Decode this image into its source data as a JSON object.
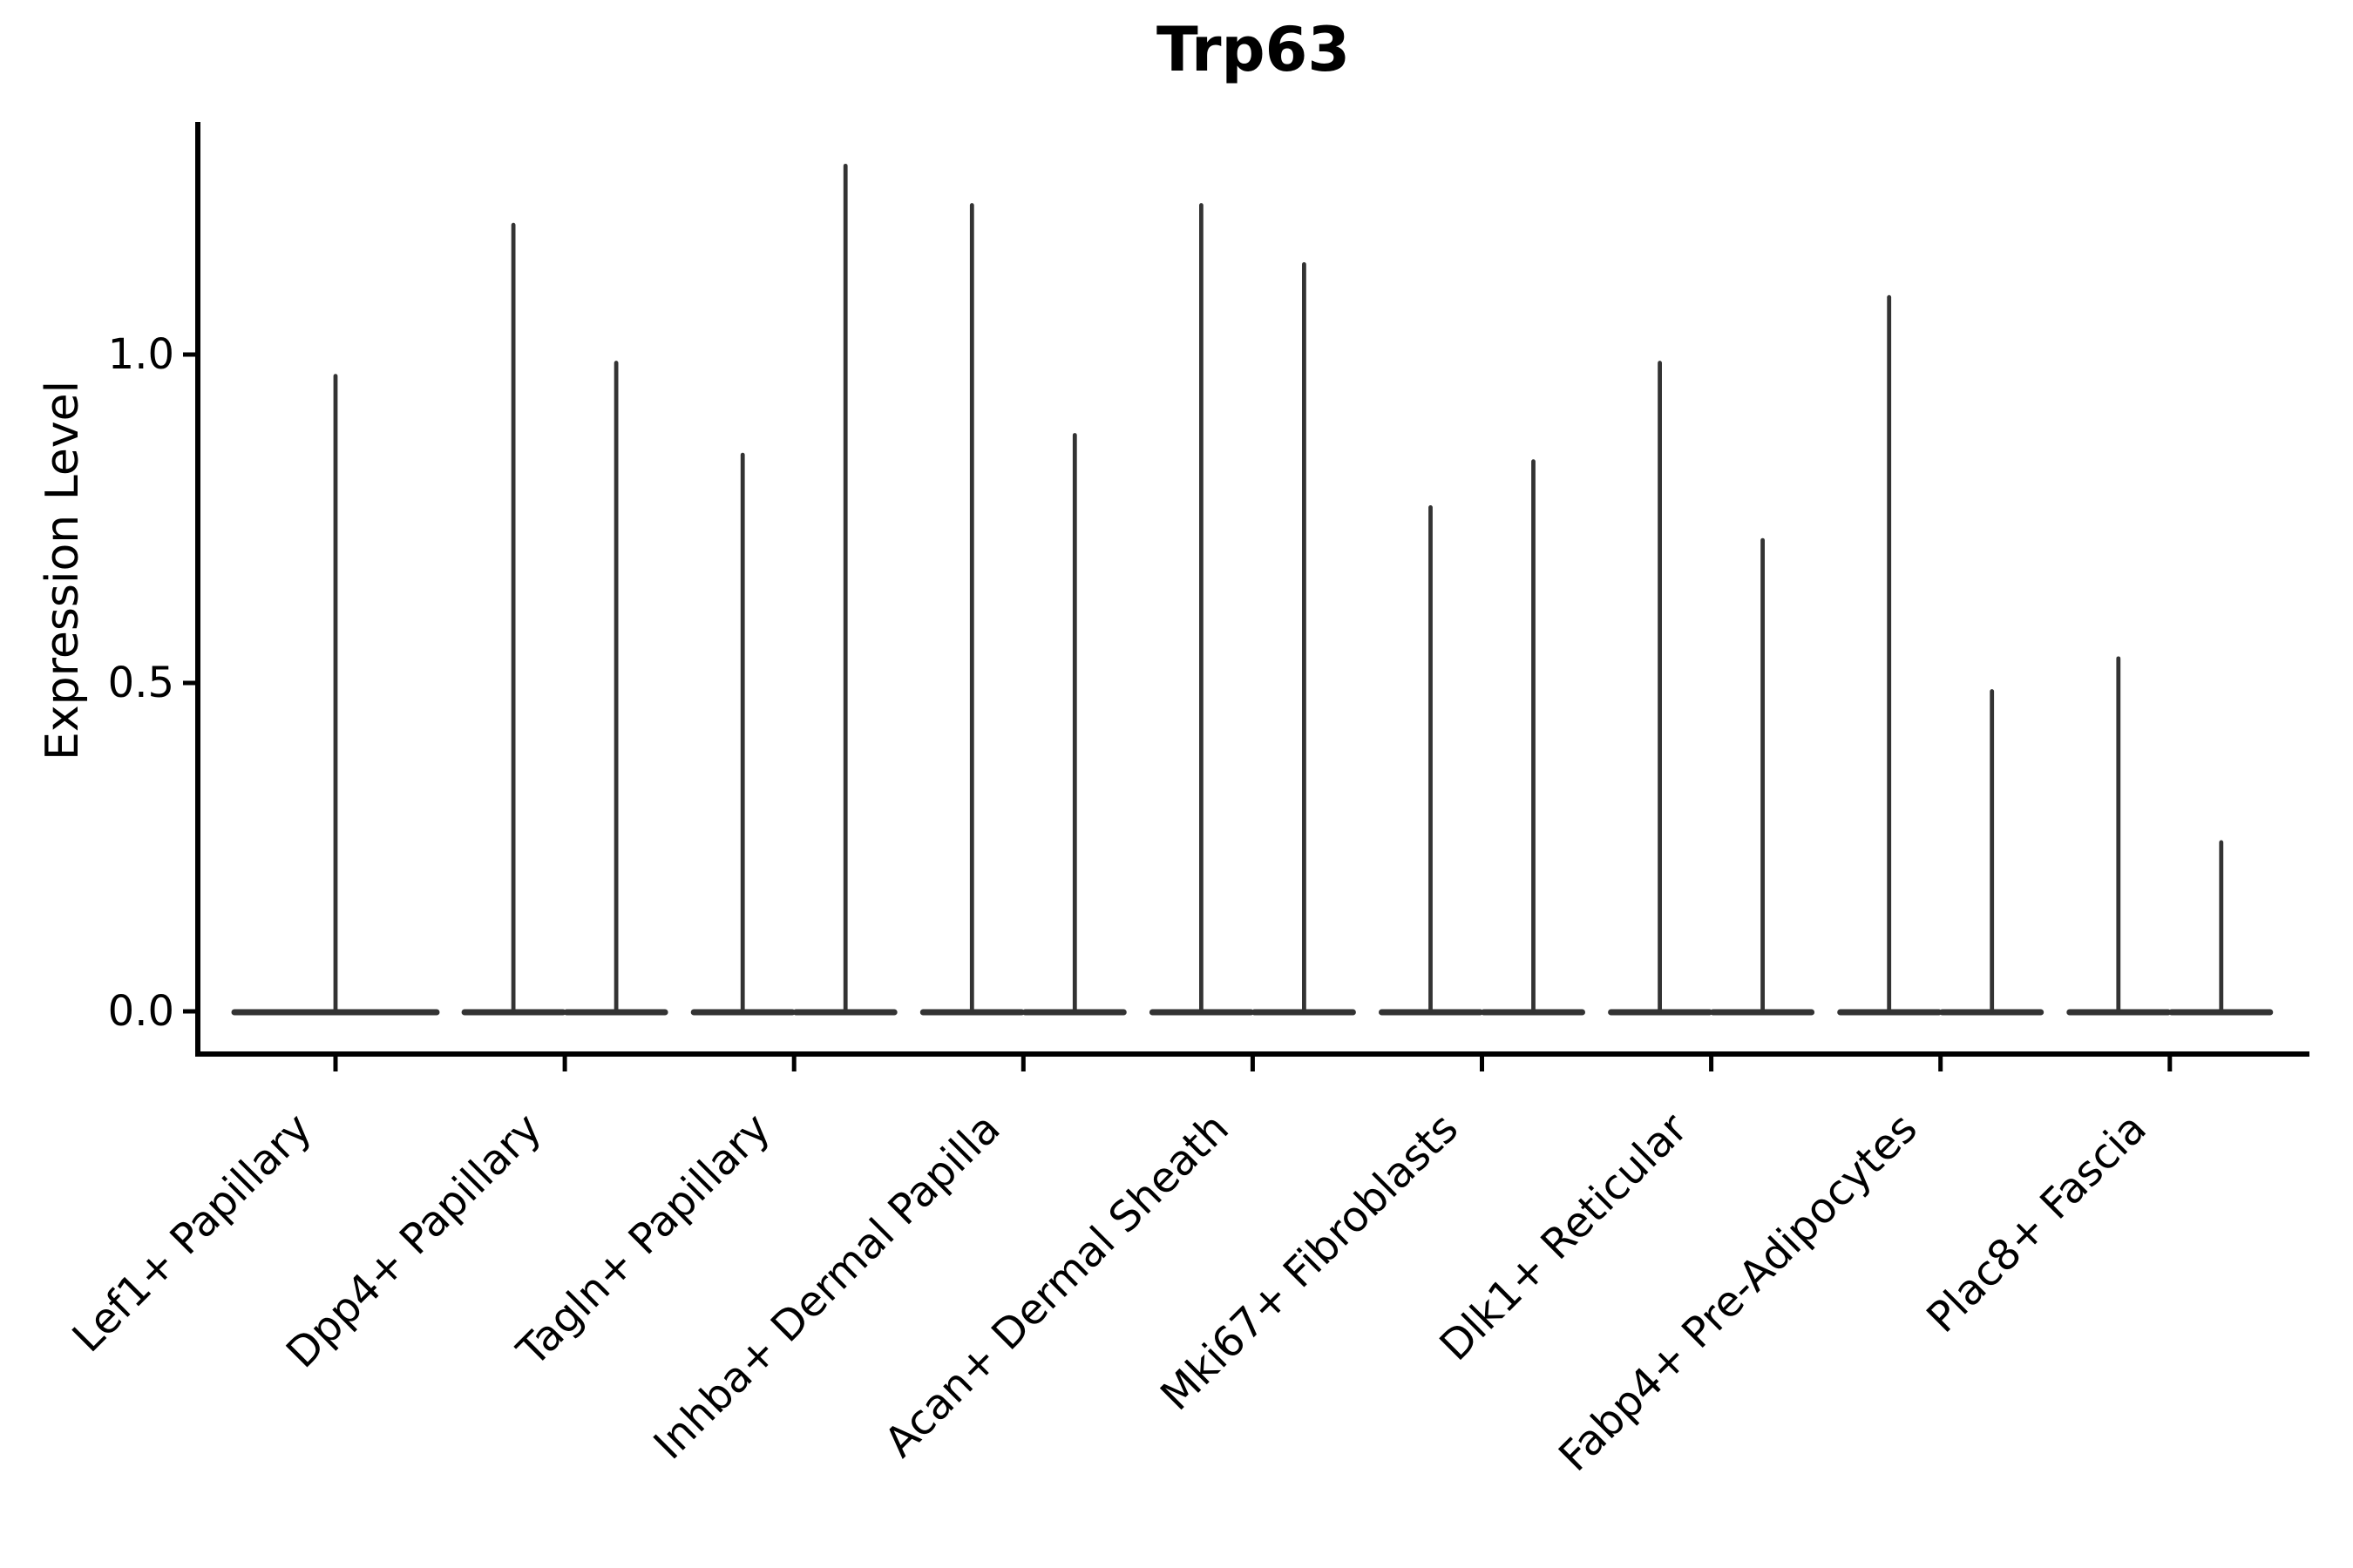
{
  "title": "Trp63",
  "chart_data": {
    "type": "violin",
    "title": "Trp63",
    "xlabel": "",
    "ylabel": "Expression Level",
    "ytick_values": [
      0.0,
      0.5,
      1.0
    ],
    "ytick_labels": [
      "0.0",
      "0.5",
      "1.0"
    ],
    "ylim": [
      -0.07,
      1.35
    ],
    "grid": false,
    "legend": null,
    "description": "Single-cell expression violin plot; each violin is a thin spike: dense mass at 0 with a narrow tail up to the max expression value. Categories 2-9 contain two violins each; category 1 contains one centered violin.",
    "categories": [
      "Lef1+ Papillary",
      "Dpp4+ Papillary",
      "Tagln+ Papillary",
      "Inhba+ Dermal Papilla",
      "Acan+ Dermal Sheath",
      "Mki67+ Fibroblasts",
      "Dlk1+ Reticular",
      "Fabp4+ Pre-Adipocytes",
      "Plac8+ Fascia"
    ],
    "series": [
      {
        "category": "Lef1+ Papillary",
        "violin_max_values": [
          0.97
        ]
      },
      {
        "category": "Dpp4+ Papillary",
        "violin_max_values": [
          1.2,
          0.99
        ]
      },
      {
        "category": "Tagln+ Papillary",
        "violin_max_values": [
          0.85,
          1.29
        ]
      },
      {
        "category": "Inhba+ Dermal Papilla",
        "violin_max_values": [
          1.23,
          0.88
        ]
      },
      {
        "category": "Acan+ Dermal Sheath",
        "violin_max_values": [
          1.23,
          1.14
        ]
      },
      {
        "category": "Mki67+ Fibroblasts",
        "violin_max_values": [
          0.77,
          0.84
        ]
      },
      {
        "category": "Dlk1+ Reticular",
        "violin_max_values": [
          0.99,
          0.72
        ]
      },
      {
        "category": "Fabp4+ Pre-Adipocytes",
        "violin_max_values": [
          1.09,
          0.49
        ]
      },
      {
        "category": "Plac8+ Fascia",
        "violin_max_values": [
          0.54,
          0.26
        ]
      }
    ],
    "violin_baseline_value": 0.0,
    "colors": {
      "violin": "#333333",
      "axis": "#000000",
      "background": "#ffffff",
      "text": "#000000"
    }
  }
}
